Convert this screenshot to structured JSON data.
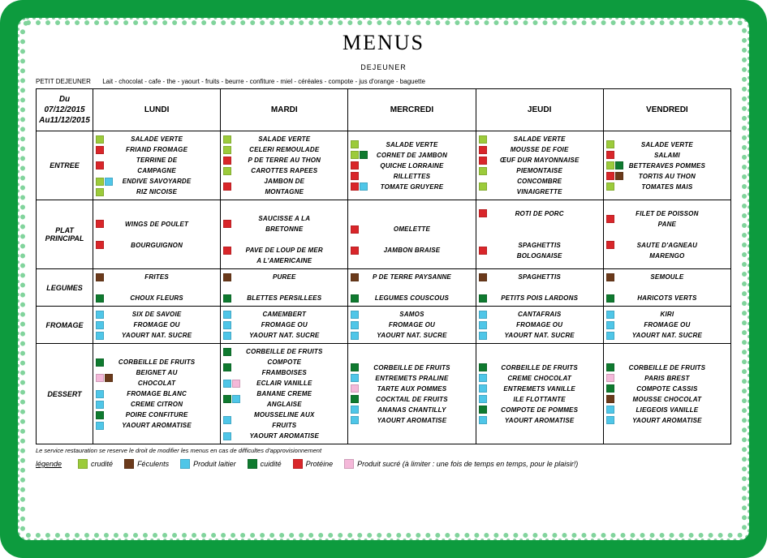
{
  "colors": {
    "frame": "#0d9b3e",
    "crudite": "#9ccb3b",
    "cuidite": "#0f7a2f",
    "feculents": "#6b3a1b",
    "proteine": "#d9262a",
    "laitier": "#4fc6e8",
    "sucre": "#f4b8d9"
  },
  "title": "MENUS",
  "subtitle": "DEJEUNER",
  "petit_dejeuner": {
    "label": "PETIT DEJEUNER",
    "text": "Lait - chocolat - cafe - the - yaourt - fruits - beurre - confiture - miel - céréales - compote - jus d'orange - baguette"
  },
  "date_range": {
    "from": "Du 07/12/2015",
    "to": "Au11/12/2015"
  },
  "days": [
    "LUNDI",
    "MARDI",
    "MERCREDI",
    "JEUDI",
    "VENDREDI"
  ],
  "categories": [
    "ENTREE",
    "PLAT PRINCIPAL",
    "LEGUMES",
    "FROMAGE",
    "DESSERT"
  ],
  "grid": {
    "ENTREE": {
      "LUNDI": [
        {
          "c": [
            "crudite"
          ],
          "t": "SALADE VERTE"
        },
        {
          "c": [
            "proteine"
          ],
          "t": "FRIAND FROMAGE"
        },
        {
          "c": [
            "proteine"
          ],
          "t": "TERRINE DE CAMPAGNE"
        },
        {
          "c": [
            "crudite",
            "laitier"
          ],
          "t": "ENDIVE SAVOYARDE"
        },
        {
          "c": [
            "crudite"
          ],
          "t": "RIZ NICOISE"
        }
      ],
      "MARDI": [
        {
          "c": [
            "crudite"
          ],
          "t": "SALADE VERTE"
        },
        {
          "c": [
            "crudite"
          ],
          "t": "CELERI REMOULADE"
        },
        {
          "c": [
            "proteine"
          ],
          "t": "P DE TERRE AU THON"
        },
        {
          "c": [
            "crudite"
          ],
          "t": "CAROTTES RAPEES"
        },
        {
          "c": [
            "proteine"
          ],
          "t": "JAMBON DE MONTAGNE"
        }
      ],
      "MERCREDI": [
        {
          "c": [
            "crudite"
          ],
          "t": "SALADE VERTE"
        },
        {
          "c": [
            "crudite",
            "cuidite"
          ],
          "t": "CORNET DE JAMBON"
        },
        {
          "c": [
            "proteine"
          ],
          "t": "QUICHE LORRAINE"
        },
        {
          "c": [
            "proteine"
          ],
          "t": "RILLETTES"
        },
        {
          "c": [
            "proteine",
            "laitier"
          ],
          "t": "TOMATE GRUYERE"
        }
      ],
      "JEUDI": [
        {
          "c": [
            "crudite"
          ],
          "t": "SALADE VERTE"
        },
        {
          "c": [
            "proteine"
          ],
          "t": "MOUSSE DE FOIE"
        },
        {
          "c": [
            "proteine"
          ],
          "t": "ŒUF DUR MAYONNAISE"
        },
        {
          "c": [
            "crudite"
          ],
          "t": "PIEMONTAISE"
        },
        {
          "c": [
            "crudite"
          ],
          "t": "CONCOMBRE VINAIGRETTE"
        }
      ],
      "VENDREDI": [
        {
          "c": [
            "crudite"
          ],
          "t": "SALADE VERTE"
        },
        {
          "c": [
            "proteine"
          ],
          "t": "SALAMI"
        },
        {
          "c": [
            "crudite",
            "cuidite"
          ],
          "t": "BETTERAVES POMMES"
        },
        {
          "c": [
            "proteine",
            "feculents"
          ],
          "t": "TORTIS AU THON"
        },
        {
          "c": [
            "crudite"
          ],
          "t": "TOMATES MAIS"
        }
      ]
    },
    "PLAT PRINCIPAL": {
      "LUNDI": [
        {
          "c": [
            "proteine"
          ],
          "t": "WINGS DE POULET"
        },
        {
          "c": [],
          "t": ""
        },
        {
          "c": [
            "proteine"
          ],
          "t": "BOURGUIGNON"
        }
      ],
      "MARDI": [
        {
          "c": [],
          "t": ""
        },
        {
          "c": [
            "proteine"
          ],
          "t": "SAUCISSE A LA BRETONNE"
        },
        {
          "c": [],
          "t": ""
        },
        {
          "c": [
            "proteine"
          ],
          "t": "PAVE DE LOUP DE MER"
        },
        {
          "c": [],
          "t": "A L'AMERICAINE"
        }
      ],
      "MERCREDI": [
        {
          "c": [],
          "t": ""
        },
        {
          "c": [
            "proteine"
          ],
          "t": "OMELETTE"
        },
        {
          "c": [],
          "t": ""
        },
        {
          "c": [
            "proteine"
          ],
          "t": "JAMBON BRAISE"
        }
      ],
      "JEUDI": [
        {
          "c": [
            "proteine"
          ],
          "t": "ROTI DE PORC"
        },
        {
          "c": [],
          "t": ""
        },
        {
          "c": [],
          "t": ""
        },
        {
          "c": [
            "proteine"
          ],
          "t": "SPAGHETTIS BOLOGNAISE"
        }
      ],
      "VENDREDI": [
        {
          "c": [
            "proteine"
          ],
          "t": "FILET DE POISSON PANE"
        },
        {
          "c": [],
          "t": ""
        },
        {
          "c": [
            "proteine"
          ],
          "t": "SAUTE D'AGNEAU"
        },
        {
          "c": [],
          "t": "MARENGO"
        }
      ]
    },
    "LEGUMES": {
      "LUNDI": [
        {
          "c": [
            "feculents"
          ],
          "t": "FRITES"
        },
        {
          "c": [],
          "t": ""
        },
        {
          "c": [
            "cuidite"
          ],
          "t": "CHOUX FLEURS"
        }
      ],
      "MARDI": [
        {
          "c": [
            "feculents"
          ],
          "t": "PUREE"
        },
        {
          "c": [],
          "t": ""
        },
        {
          "c": [
            "cuidite"
          ],
          "t": "BLETTES PERSILLEES"
        }
      ],
      "MERCREDI": [
        {
          "c": [
            "feculents"
          ],
          "t": "P DE TERRE PAYSANNE"
        },
        {
          "c": [],
          "t": ""
        },
        {
          "c": [
            "cuidite"
          ],
          "t": "LEGUMES COUSCOUS"
        }
      ],
      "JEUDI": [
        {
          "c": [
            "feculents"
          ],
          "t": "SPAGHETTIS"
        },
        {
          "c": [],
          "t": ""
        },
        {
          "c": [
            "cuidite"
          ],
          "t": "PETITS POIS LARDONS"
        }
      ],
      "VENDREDI": [
        {
          "c": [
            "feculents"
          ],
          "t": "SEMOULE"
        },
        {
          "c": [],
          "t": ""
        },
        {
          "c": [
            "cuidite"
          ],
          "t": "HARICOTS VERTS"
        }
      ]
    },
    "FROMAGE": {
      "LUNDI": [
        {
          "c": [
            "laitier"
          ],
          "t": "SIX DE SAVOIE"
        },
        {
          "c": [
            "laitier"
          ],
          "t": "FROMAGE OU"
        },
        {
          "c": [
            "laitier"
          ],
          "t": "YAOURT NAT. SUCRE"
        }
      ],
      "MARDI": [
        {
          "c": [
            "laitier"
          ],
          "t": "CAMEMBERT"
        },
        {
          "c": [
            "laitier"
          ],
          "t": "FROMAGE OU"
        },
        {
          "c": [
            "laitier"
          ],
          "t": "YAOURT NAT. SUCRE"
        }
      ],
      "MERCREDI": [
        {
          "c": [
            "laitier"
          ],
          "t": "SAMOS"
        },
        {
          "c": [
            "laitier"
          ],
          "t": "FROMAGE OU"
        },
        {
          "c": [
            "laitier"
          ],
          "t": "YAOURT NAT. SUCRE"
        }
      ],
      "JEUDI": [
        {
          "c": [
            "laitier"
          ],
          "t": "CANTAFRAIS"
        },
        {
          "c": [
            "laitier"
          ],
          "t": "FROMAGE OU"
        },
        {
          "c": [
            "laitier"
          ],
          "t": "YAOURT NAT. SUCRE"
        }
      ],
      "VENDREDI": [
        {
          "c": [
            "laitier"
          ],
          "t": "KIRI"
        },
        {
          "c": [
            "laitier"
          ],
          "t": "FROMAGE OU"
        },
        {
          "c": [
            "laitier"
          ],
          "t": "YAOURT NAT. SUCRE"
        }
      ]
    },
    "DESSERT": {
      "LUNDI": [
        {
          "c": [
            "cuidite"
          ],
          "t": "CORBEILLE DE FRUITS"
        },
        {
          "c": [
            "sucre",
            "feculents"
          ],
          "t": "BEIGNET AU CHOCOLAT"
        },
        {
          "c": [
            "laitier"
          ],
          "t": "FROMAGE BLANC"
        },
        {
          "c": [
            "laitier"
          ],
          "t": "CREME CITRON"
        },
        {
          "c": [
            "cuidite"
          ],
          "t": "POIRE CONFITURE"
        },
        {
          "c": [
            "laitier"
          ],
          "t": "YAOURT AROMATISE"
        }
      ],
      "MARDI": [
        {
          "c": [
            "cuidite"
          ],
          "t": "CORBEILLE DE FRUITS"
        },
        {
          "c": [
            "cuidite"
          ],
          "t": "COMPOTE FRAMBOISES"
        },
        {
          "c": [
            "laitier",
            "sucre"
          ],
          "t": "ECLAIR VANILLE"
        },
        {
          "c": [
            "cuidite",
            "laitier"
          ],
          "t": "BANANE CREME ANGLAISE"
        },
        {
          "c": [
            "laitier"
          ],
          "t": "MOUSSELINE AUX FRUITS"
        },
        {
          "c": [
            "laitier"
          ],
          "t": "YAOURT AROMATISE"
        }
      ],
      "MERCREDI": [
        {
          "c": [
            "cuidite"
          ],
          "t": "CORBEILLE DE FRUITS"
        },
        {
          "c": [
            "laitier"
          ],
          "t": "ENTREMETS PRALINE"
        },
        {
          "c": [
            "sucre"
          ],
          "t": "TARTE AUX POMMES"
        },
        {
          "c": [
            "cuidite"
          ],
          "t": "COCKTAIL DE FRUITS"
        },
        {
          "c": [
            "laitier"
          ],
          "t": "ANANAS CHANTILLY"
        },
        {
          "c": [
            "laitier"
          ],
          "t": "YAOURT AROMATISE"
        }
      ],
      "JEUDI": [
        {
          "c": [
            "cuidite"
          ],
          "t": "CORBEILLE DE FRUITS"
        },
        {
          "c": [
            "laitier"
          ],
          "t": "CREME CHOCOLAT"
        },
        {
          "c": [
            "laitier"
          ],
          "t": "ENTREMETS VANILLE"
        },
        {
          "c": [
            "laitier"
          ],
          "t": "ILE FLOTTANTE"
        },
        {
          "c": [
            "cuidite"
          ],
          "t": "COMPOTE DE POMMES"
        },
        {
          "c": [
            "laitier"
          ],
          "t": "YAOURT AROMATISE"
        }
      ],
      "VENDREDI": [
        {
          "c": [
            "cuidite"
          ],
          "t": "CORBEILLE DE FRUITS"
        },
        {
          "c": [
            "sucre"
          ],
          "t": "PARIS BREST"
        },
        {
          "c": [
            "cuidite"
          ],
          "t": "COMPOTE CASSIS"
        },
        {
          "c": [
            "feculents"
          ],
          "t": "MOUSSE CHOCOLAT"
        },
        {
          "c": [
            "laitier"
          ],
          "t": "LIEGEOIS VANILLE"
        },
        {
          "c": [
            "laitier"
          ],
          "t": "YAOURT AROMATISE"
        }
      ]
    }
  },
  "footnote": "Le service restauration se reserve le droit de modifier les menus en cas de difficultes d'approvisionnement",
  "legend": {
    "title": "légende",
    "items": [
      {
        "key": "crudite",
        "label": "crudité"
      },
      {
        "key": "feculents",
        "label": "Féculents"
      },
      {
        "key": "laitier",
        "label": "Produit laitier"
      },
      {
        "key": "cuidite",
        "label": "cuidité"
      },
      {
        "key": "proteine",
        "label": "Protéine"
      },
      {
        "key": "sucre",
        "label": "Produit sucré (à limiter : une fois de temps en temps, pour le plaisir!)"
      }
    ]
  }
}
